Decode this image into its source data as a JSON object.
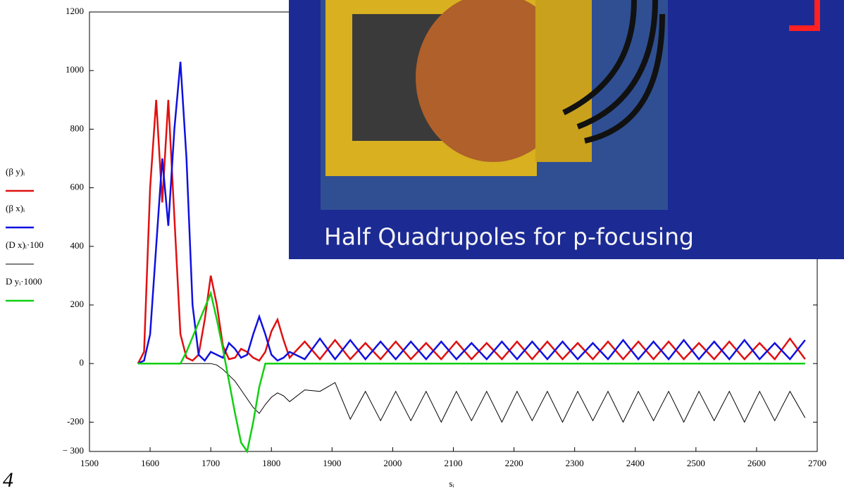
{
  "chart_data": {
    "type": "line",
    "x": [
      1580,
      1590,
      1600,
      1610,
      1620,
      1630,
      1640,
      1650,
      1660,
      1670,
      1680,
      1690,
      1700,
      1710,
      1720,
      1730,
      1740,
      1750,
      1760,
      1770,
      1780,
      1790,
      1800,
      1810,
      1820,
      1830,
      1855,
      1880,
      1905,
      1930,
      1955,
      1980,
      2005,
      2030,
      2055,
      2080,
      2105,
      2130,
      2155,
      2180,
      2205,
      2230,
      2255,
      2280,
      2305,
      2330,
      2355,
      2380,
      2405,
      2430,
      2455,
      2480,
      2505,
      2530,
      2555,
      2580,
      2605,
      2630,
      2655,
      2680
    ],
    "series": [
      {
        "name": "(β y)ᵢ",
        "color": "#e01010",
        "values": [
          0,
          40,
          600,
          900,
          550,
          900,
          500,
          100,
          20,
          10,
          30,
          150,
          300,
          200,
          60,
          15,
          20,
          50,
          40,
          20,
          10,
          40,
          110,
          150,
          80,
          20,
          75,
          15,
          80,
          15,
          70,
          15,
          75,
          15,
          70,
          15,
          75,
          15,
          70,
          15,
          75,
          15,
          75,
          15,
          70,
          15,
          75,
          15,
          75,
          15,
          75,
          15,
          70,
          15,
          75,
          15,
          70,
          15,
          85,
          15
        ]
      },
      {
        "name": "(β x)ᵢ",
        "color": "#1010e0",
        "values": [
          0,
          10,
          100,
          400,
          700,
          470,
          800,
          1030,
          700,
          200,
          30,
          10,
          40,
          30,
          20,
          70,
          50,
          20,
          30,
          100,
          160,
          100,
          30,
          10,
          20,
          40,
          15,
          85,
          15,
          80,
          15,
          75,
          15,
          75,
          15,
          75,
          15,
          70,
          15,
          75,
          15,
          75,
          15,
          75,
          15,
          70,
          15,
          80,
          15,
          75,
          15,
          80,
          15,
          75,
          15,
          80,
          15,
          70,
          15,
          80
        ]
      },
      {
        "name": "(D x)ᵢ·100",
        "color": "#000000",
        "values": [
          0,
          0,
          0,
          0,
          0,
          0,
          0,
          0,
          0,
          0,
          0,
          0,
          0,
          -5,
          -20,
          -40,
          -60,
          -90,
          -120,
          -150,
          -170,
          -140,
          -115,
          -100,
          -110,
          -130,
          -90,
          -95,
          -65,
          -190,
          -95,
          -195,
          -95,
          -195,
          -95,
          -200,
          -95,
          -195,
          -95,
          -200,
          -95,
          -195,
          -95,
          -200,
          -95,
          -195,
          -95,
          -200,
          -95,
          -195,
          -95,
          -200,
          -95,
          -195,
          -95,
          -200,
          -95,
          -195,
          -95,
          -185
        ]
      },
      {
        "name": "D yᵢ·1000",
        "color": "#10d010",
        "values": [
          0,
          0,
          0,
          0,
          0,
          0,
          0,
          0,
          40,
          90,
          140,
          190,
          240,
          150,
          50,
          -60,
          -170,
          -270,
          -300,
          -200,
          -80,
          0,
          0,
          0,
          0,
          0,
          0,
          0,
          0,
          0,
          0,
          0,
          0,
          0,
          0,
          0,
          0,
          0,
          0,
          0,
          0,
          0,
          0,
          0,
          0,
          0,
          0,
          0,
          0,
          0,
          0,
          0,
          0,
          0,
          0,
          0,
          0,
          0,
          0,
          0
        ]
      }
    ],
    "x_label": "sᵢ",
    "xlim": [
      1500,
      2700
    ],
    "xticks": [
      1500,
      1600,
      1700,
      1800,
      1900,
      2000,
      2100,
      2200,
      2300,
      2400,
      2500,
      2600,
      2700
    ],
    "ylim": [
      -300,
      1200
    ],
    "yticks": [
      {
        "value": -300,
        "label": "− 300"
      },
      -200,
      0,
      200,
      400,
      600,
      800,
      1000,
      1200
    ],
    "grid": false
  },
  "inset": {
    "caption": "Half Quadrupoles  for p-focusing"
  },
  "slide_number": "4"
}
